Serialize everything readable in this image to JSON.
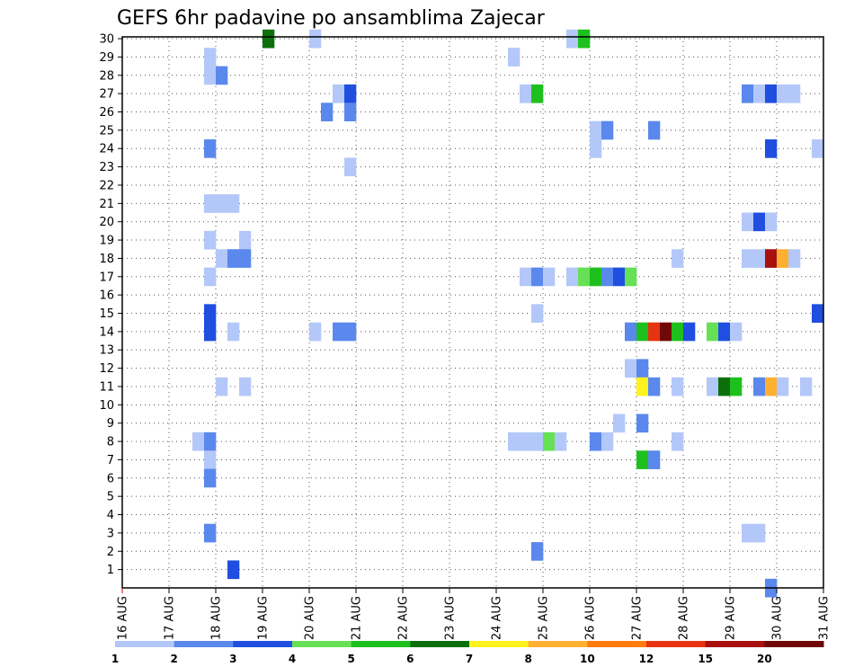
{
  "chart_data": {
    "type": "heatmap",
    "title": "GEFS 6hr padavine po ansamblima Zajecar",
    "x_tick_labels": [
      "16 AUG",
      "17 AUG",
      "18 AUG",
      "19 AUG",
      "20 AUG",
      "21 AUG",
      "22 AUG",
      "23 AUG",
      "24 AUG",
      "25 AUG",
      "26 AUG",
      "27 AUG",
      "28 AUG",
      "29 AUG",
      "30 AUG",
      "31 AUG"
    ],
    "y_tick_labels": [
      "1",
      "2",
      "3",
      "4",
      "5",
      "6",
      "7",
      "8",
      "9",
      "10",
      "11",
      "12",
      "13",
      "14",
      "15",
      "16",
      "17",
      "18",
      "19",
      "20",
      "21",
      "22",
      "23",
      "24",
      "25",
      "26",
      "27",
      "28",
      "29",
      "30"
    ],
    "xlim_days": [
      0,
      15
    ],
    "ylim_members": [
      0,
      30
    ],
    "grid": true,
    "colorbar": {
      "labels": [
        "1",
        "2",
        "3",
        "4",
        "5",
        "6",
        "7",
        "8",
        "10",
        "12",
        "15",
        "20"
      ],
      "colors": [
        "#b3c8f8",
        "#5a88ec",
        "#1f4ee0",
        "#66e055",
        "#1ec01e",
        "#0b700b",
        "#fff21e",
        "#ffb030",
        "#ff7b10",
        "#e63412",
        "#a81010",
        "#700808"
      ]
    },
    "cells": [
      [
        0,
        30,
        3,
        6
      ],
      [
        0,
        30,
        4,
        1
      ],
      [
        0,
        30,
        9.5,
        1
      ],
      [
        0,
        30,
        9.75,
        5
      ],
      [
        0,
        29,
        1.75,
        1
      ],
      [
        0,
        29,
        8.25,
        1
      ],
      [
        0,
        28,
        1.75,
        1
      ],
      [
        0,
        28,
        2,
        2
      ],
      [
        0,
        27,
        4.5,
        1
      ],
      [
        0,
        27,
        4.75,
        3
      ],
      [
        0,
        27,
        8.5,
        1
      ],
      [
        0,
        27,
        8.75,
        5
      ],
      [
        0,
        27,
        13.25,
        2
      ],
      [
        0,
        27,
        13.5,
        1
      ],
      [
        0,
        27,
        13.75,
        3
      ],
      [
        0,
        27,
        14,
        1
      ],
      [
        0,
        27,
        14.25,
        1
      ],
      [
        0,
        26,
        4.25,
        2
      ],
      [
        0,
        26,
        4.75,
        2
      ],
      [
        0,
        25,
        10,
        1
      ],
      [
        0,
        25,
        10.25,
        2
      ],
      [
        0,
        25,
        11.25,
        2
      ],
      [
        0,
        24,
        1.75,
        2
      ],
      [
        0,
        24,
        10,
        1
      ],
      [
        0,
        24,
        13.75,
        3
      ],
      [
        0,
        24,
        14.75,
        1
      ],
      [
        0,
        23,
        4.75,
        1
      ],
      [
        0,
        21,
        1.75,
        1
      ],
      [
        0,
        21,
        2,
        1
      ],
      [
        0,
        21,
        2.25,
        1
      ],
      [
        0,
        20,
        13.25,
        1
      ],
      [
        0,
        20,
        13.5,
        3
      ],
      [
        0,
        20,
        13.75,
        1
      ],
      [
        0,
        19,
        1.75,
        1
      ],
      [
        0,
        19,
        2.5,
        1
      ],
      [
        0,
        18,
        2,
        1
      ],
      [
        0,
        18,
        2.25,
        2
      ],
      [
        0,
        18,
        2.5,
        2
      ],
      [
        0,
        18,
        11.75,
        1
      ],
      [
        0,
        18,
        13.25,
        1
      ],
      [
        0,
        18,
        13.5,
        1
      ],
      [
        0,
        18,
        13.75,
        11
      ],
      [
        0,
        18,
        14,
        8
      ],
      [
        0,
        18,
        14.25,
        1
      ],
      [
        0,
        17,
        1.75,
        1
      ],
      [
        0,
        17,
        8.5,
        1
      ],
      [
        0,
        17,
        8.75,
        2
      ],
      [
        0,
        17,
        9,
        1
      ],
      [
        0,
        17,
        9.5,
        1
      ],
      [
        0,
        17,
        9.75,
        4
      ],
      [
        0,
        17,
        10,
        5
      ],
      [
        0,
        17,
        10.25,
        2
      ],
      [
        0,
        17,
        10.5,
        3
      ],
      [
        0,
        17,
        10.75,
        4
      ],
      [
        0,
        15,
        1.75,
        3
      ],
      [
        0,
        15,
        8.75,
        1
      ],
      [
        0,
        15,
        14.75,
        3
      ],
      [
        0,
        14,
        1.75,
        3
      ],
      [
        0,
        14,
        2.25,
        1
      ],
      [
        0,
        14,
        4,
        1
      ],
      [
        0,
        14,
        4.5,
        2
      ],
      [
        0,
        14,
        4.75,
        2
      ],
      [
        0,
        14,
        10.75,
        2
      ],
      [
        0,
        14,
        11,
        5
      ],
      [
        0,
        14,
        11.25,
        10
      ],
      [
        0,
        14,
        11.5,
        12
      ],
      [
        0,
        14,
        11.75,
        5
      ],
      [
        0,
        14,
        12,
        3
      ],
      [
        0,
        14,
        12.5,
        4
      ],
      [
        0,
        14,
        12.75,
        3
      ],
      [
        0,
        14,
        13,
        1
      ],
      [
        0,
        12,
        10.75,
        1
      ],
      [
        0,
        12,
        11,
        2
      ],
      [
        0,
        11,
        2,
        1
      ],
      [
        0,
        11,
        2.5,
        1
      ],
      [
        0,
        11,
        11,
        7
      ],
      [
        0,
        11,
        11.25,
        2
      ],
      [
        0,
        11,
        11.75,
        1
      ],
      [
        0,
        11,
        12.5,
        1
      ],
      [
        0,
        11,
        12.75,
        6
      ],
      [
        0,
        11,
        13,
        5
      ],
      [
        0,
        11,
        13.5,
        2
      ],
      [
        0,
        11,
        13.75,
        8
      ],
      [
        0,
        11,
        14,
        1
      ],
      [
        0,
        11,
        14.5,
        1
      ],
      [
        0,
        9,
        10.5,
        1
      ],
      [
        0,
        9,
        11,
        2
      ],
      [
        0,
        8,
        1.5,
        1
      ],
      [
        0,
        8,
        1.75,
        2
      ],
      [
        0,
        8,
        8.25,
        1
      ],
      [
        0,
        8,
        8.5,
        1
      ],
      [
        0,
        8,
        8.75,
        1
      ],
      [
        0,
        8,
        9,
        4
      ],
      [
        0,
        8,
        9.25,
        1
      ],
      [
        0,
        8,
        10,
        2
      ],
      [
        0,
        8,
        10.25,
        1
      ],
      [
        0,
        8,
        11.75,
        1
      ],
      [
        0,
        7,
        1.75,
        1
      ],
      [
        0,
        7,
        11,
        5
      ],
      [
        0,
        7,
        11.25,
        2
      ],
      [
        0,
        6,
        1.75,
        2
      ],
      [
        0,
        3,
        1.75,
        2
      ],
      [
        0,
        3,
        13.25,
        1
      ],
      [
        0,
        3,
        13.5,
        1
      ],
      [
        0,
        2,
        8.75,
        2
      ],
      [
        0,
        1,
        2.25,
        3
      ],
      [
        0,
        0,
        13.75,
        2
      ]
    ]
  }
}
